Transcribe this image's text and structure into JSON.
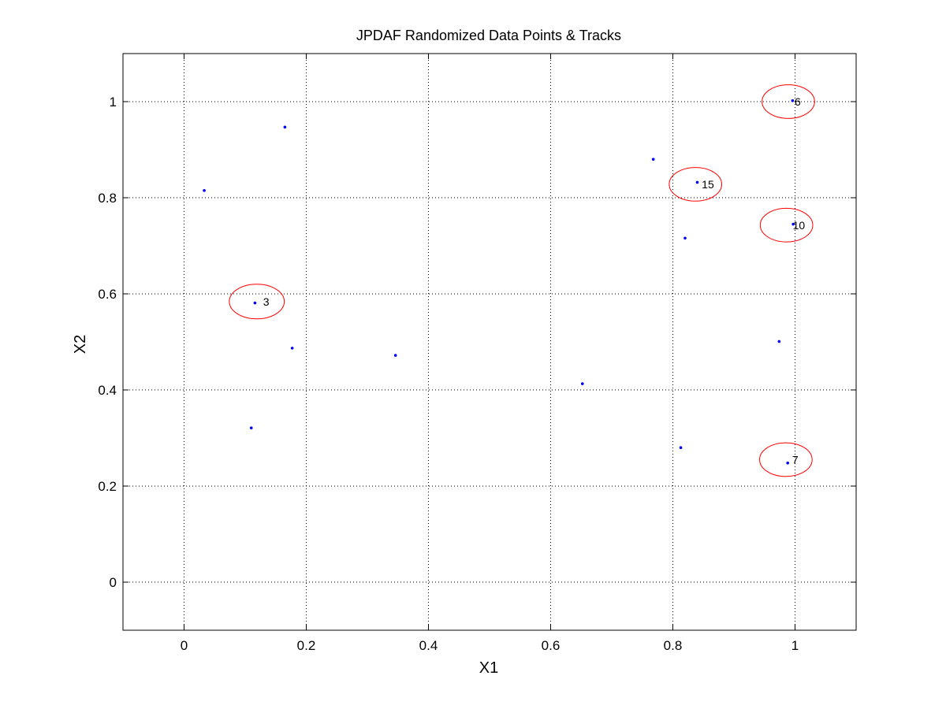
{
  "chart_data": {
    "type": "scatter",
    "title": "JPDAF Randomized Data Points & Tracks",
    "xlabel": "X1",
    "ylabel": "X2",
    "xlim": [
      -0.1,
      1.1
    ],
    "ylim": [
      -0.1,
      1.1
    ],
    "xticks": [
      0,
      0.2,
      0.4,
      0.6,
      0.8,
      1
    ],
    "yticks": [
      0,
      0.2,
      0.4,
      0.6,
      0.8,
      1
    ],
    "xtick_labels": [
      "0",
      "0.2",
      "0.4",
      "0.6",
      "0.8",
      "1"
    ],
    "ytick_labels": [
      "0",
      "0.2",
      "0.4",
      "0.6",
      "0.8",
      "1"
    ],
    "grid": true,
    "legend": "none",
    "colors": {
      "points": "#0000ff",
      "tracks": "#ff0000",
      "grid": "#000000",
      "axes": "#000000"
    },
    "points": [
      {
        "x": 0.033,
        "y": 0.815
      },
      {
        "x": 0.165,
        "y": 0.947
      },
      {
        "x": 0.116,
        "y": 0.581
      },
      {
        "x": 0.177,
        "y": 0.487
      },
      {
        "x": 0.346,
        "y": 0.472
      },
      {
        "x": 0.11,
        "y": 0.321
      },
      {
        "x": 0.652,
        "y": 0.413
      },
      {
        "x": 0.768,
        "y": 0.88
      },
      {
        "x": 0.84,
        "y": 0.832
      },
      {
        "x": 0.82,
        "y": 0.716
      },
      {
        "x": 0.813,
        "y": 0.28
      },
      {
        "x": 0.974,
        "y": 0.501
      },
      {
        "x": 0.988,
        "y": 0.248
      },
      {
        "x": 0.996,
        "y": 1.002
      },
      {
        "x": 0.997,
        "y": 0.745
      }
    ],
    "tracks": [
      {
        "label": "3",
        "x": 0.119,
        "y": 0.584,
        "rx": 0.045,
        "ry": 0.036
      },
      {
        "label": "15",
        "x": 0.837,
        "y": 0.828,
        "rx": 0.043,
        "ry": 0.035
      },
      {
        "label": "6",
        "x": 0.989,
        "y": 1.0,
        "rx": 0.043,
        "ry": 0.035
      },
      {
        "label": "10",
        "x": 0.986,
        "y": 0.743,
        "rx": 0.043,
        "ry": 0.035
      },
      {
        "label": "7",
        "x": 0.985,
        "y": 0.255,
        "rx": 0.043,
        "ry": 0.035
      }
    ]
  }
}
